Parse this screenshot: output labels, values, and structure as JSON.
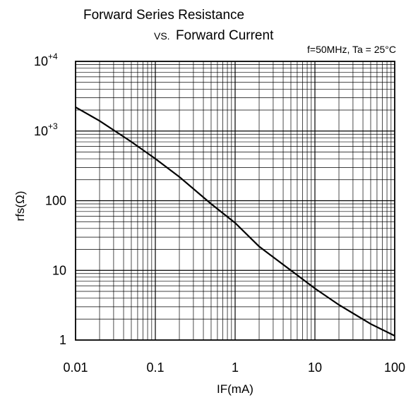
{
  "chart_data": {
    "type": "line",
    "title_line1": "Forward Series Resistance",
    "title_line2_prefix": "VS.",
    "title_line2_main": "Forward Current",
    "condition": "f=50MHz, Ta = 25°C",
    "xlabel": "IF(mA)",
    "ylabel": "rfs(Ω)",
    "xscale": "log",
    "yscale": "log",
    "xlim": [
      0.01,
      100
    ],
    "ylim": [
      1,
      10000
    ],
    "grid": true,
    "x_ticks": [
      {
        "value": 0.01,
        "label": "0.01"
      },
      {
        "value": 0.1,
        "label": "0.1"
      },
      {
        "value": 1,
        "label": "1"
      },
      {
        "value": 10,
        "label": "10"
      },
      {
        "value": 100,
        "label": "100"
      }
    ],
    "y_ticks": [
      {
        "value": 1,
        "label": "1",
        "sup": ""
      },
      {
        "value": 10,
        "label": "10",
        "sup": ""
      },
      {
        "value": 100,
        "label": "100",
        "sup": ""
      },
      {
        "value": 1000,
        "label": "10",
        "sup": "+3"
      },
      {
        "value": 10000,
        "label": "10",
        "sup": "+4"
      }
    ],
    "series": [
      {
        "color": "#000000",
        "x": [
          0.01,
          0.02,
          0.05,
          0.1,
          0.2,
          0.5,
          1,
          2,
          5,
          10,
          20,
          50,
          100
        ],
        "y": [
          2200,
          1400,
          700,
          400,
          220,
          90,
          48,
          22,
          10,
          5.5,
          3.2,
          1.7,
          1.15
        ]
      }
    ]
  }
}
